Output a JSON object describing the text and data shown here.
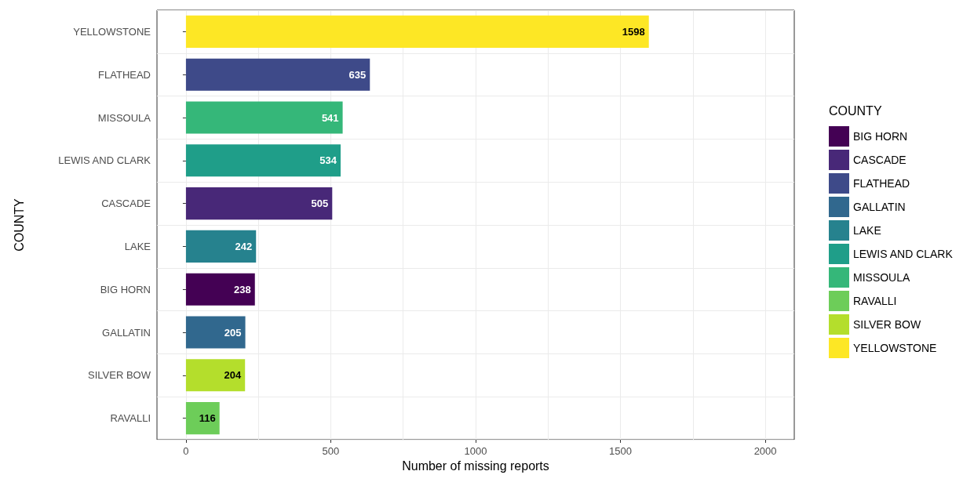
{
  "chart_data": {
    "type": "bar",
    "orientation": "horizontal",
    "stacked": true,
    "xlabel": "Number of missing reports",
    "ylabel": "COUNTY",
    "legend_title": "COUNTY",
    "legend": "right",
    "grid": true,
    "data_labels": true,
    "categories": [
      "YELLOWSTONE",
      "FLATHEAD",
      "MISSOULA",
      "LEWIS AND CLARK",
      "CASCADE",
      "LAKE",
      "BIG HORN",
      "GALLATIN",
      "SILVER BOW",
      "RAVALLI"
    ],
    "xlim": [
      -100,
      2100
    ],
    "xticks": [
      0,
      {
        "value": 250,
        "label": null
      },
      500,
      {
        "value": 750,
        "label": null
      },
      1000,
      {
        "value": 1250,
        "label": null
      },
      1500,
      {
        "value": 1750,
        "label": null
      },
      2000
    ],
    "series": [
      {
        "name": "BIG HORN",
        "color": "#440154",
        "values": [
          null,
          null,
          null,
          null,
          null,
          null,
          238,
          null,
          null,
          null
        ]
      },
      {
        "name": "CASCADE",
        "color": "#482878",
        "values": [
          null,
          null,
          null,
          null,
          505,
          null,
          null,
          null,
          null,
          null
        ]
      },
      {
        "name": "FLATHEAD",
        "color": "#3e4a89",
        "values": [
          null,
          635,
          null,
          null,
          null,
          null,
          null,
          null,
          null,
          null
        ]
      },
      {
        "name": "GALLATIN",
        "color": "#31688e",
        "values": [
          null,
          null,
          null,
          null,
          null,
          null,
          null,
          205,
          null,
          null
        ]
      },
      {
        "name": "LAKE",
        "color": "#26828e",
        "values": [
          null,
          null,
          null,
          null,
          null,
          242,
          null,
          null,
          null,
          null
        ]
      },
      {
        "name": "LEWIS AND CLARK",
        "color": "#1f9e89",
        "values": [
          null,
          null,
          null,
          534,
          null,
          null,
          null,
          null,
          null,
          null
        ]
      },
      {
        "name": "MISSOULA",
        "color": "#35b779",
        "values": [
          null,
          null,
          541,
          null,
          null,
          null,
          null,
          null,
          null,
          null
        ]
      },
      {
        "name": "RAVALLI",
        "color": "#6dcd59",
        "values": [
          null,
          null,
          null,
          null,
          null,
          null,
          null,
          null,
          null,
          116
        ]
      },
      {
        "name": "SILVER BOW",
        "color": "#b4de2c",
        "values": [
          null,
          null,
          null,
          null,
          null,
          null,
          null,
          null,
          204,
          null
        ]
      },
      {
        "name": "YELLOWSTONE",
        "color": "#fde725",
        "values": [
          1598,
          null,
          null,
          null,
          null,
          null,
          null,
          null,
          null,
          null
        ]
      }
    ]
  }
}
